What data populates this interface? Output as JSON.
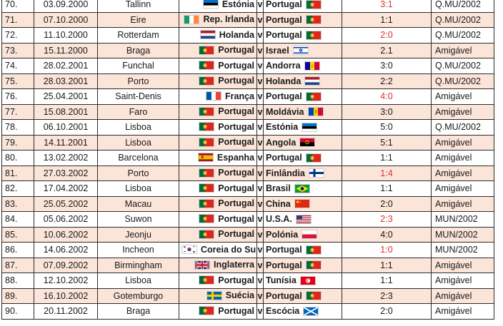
{
  "rows": [
    {
      "n": "70.",
      "date": "03.09.2000",
      "city": "Tallinn",
      "home": "Estónia",
      "home_flag": "estonia-flag",
      "away": "Portugal",
      "away_flag": "portugal-flag",
      "score": "3:1",
      "score_color": "#e0312c",
      "comp": "Q.MU/2002"
    },
    {
      "n": "71.",
      "date": "07.10.2000",
      "city": "Eire",
      "home": "Rep. Irlanda",
      "home_flag": "ireland-flag",
      "away": "Portugal",
      "away_flag": "portugal-flag",
      "score": "1:1",
      "score_color": "#1a1a1a",
      "comp": "Q.MU/2002"
    },
    {
      "n": "72.",
      "date": "11.10.2000",
      "city": "Rotterdam",
      "home": "Holanda",
      "home_flag": "netherlands-flag",
      "away": "Portugal",
      "away_flag": "portugal-flag",
      "score": "2:0",
      "score_color": "#e0312c",
      "comp": "Q.MU/2002"
    },
    {
      "n": "73.",
      "date": "15.11.2000",
      "city": "Braga",
      "home": "Portugal",
      "home_flag": "portugal-flag",
      "away": "Israel",
      "away_flag": "israel-flag",
      "score": "2.1",
      "score_color": "#1a1a1a",
      "comp": "Amigável"
    },
    {
      "n": "74.",
      "date": "28.02.2001",
      "city": "Funchal",
      "home": "Portugal",
      "home_flag": "portugal-flag",
      "away": "Andorra",
      "away_flag": "andorra-flag",
      "score": "3:0",
      "score_color": "#1a1a1a",
      "comp": "Q.MU/2002"
    },
    {
      "n": "75.",
      "date": "28.03.2001",
      "city": "Porto",
      "home": "Portugal",
      "home_flag": "portugal-flag",
      "away": "Holanda",
      "away_flag": "netherlands-flag",
      "score": "2:2",
      "score_color": "#1a1a1a",
      "comp": "Q.MU/2002"
    },
    {
      "n": "76.",
      "date": "25.04.2001",
      "city": "Saint-Denis",
      "home": "França",
      "home_flag": "france-flag",
      "away": "Portugal",
      "away_flag": "portugal-flag",
      "score": "4:0",
      "score_color": "#e0312c",
      "comp": "Amigável"
    },
    {
      "n": "77.",
      "date": "15.08.2001",
      "city": "Faro",
      "home": "Portugal",
      "home_flag": "portugal-flag",
      "away": "Moldávia",
      "away_flag": "moldova-flag",
      "score": "3:0",
      "score_color": "#1a1a1a",
      "comp": "Amigável"
    },
    {
      "n": "78.",
      "date": "06.10.2001",
      "city": "Lisboa",
      "home": "Portugal",
      "home_flag": "portugal-flag",
      "away": "Estónia",
      "away_flag": "estonia-flag",
      "score": "5:0",
      "score_color": "#1a1a1a",
      "comp": "Q.MU/2002"
    },
    {
      "n": "79.",
      "date": "14.11.2001",
      "city": "Lisboa",
      "home": "Portugal",
      "home_flag": "portugal-flag",
      "away": "Angola",
      "away_flag": "angola-flag",
      "score": "5:1",
      "score_color": "#1a1a1a",
      "comp": "Amigável"
    },
    {
      "n": "80.",
      "date": "13.02.2002",
      "city": "Barcelona",
      "home": "Espanha",
      "home_flag": "spain-flag",
      "away": "Portugal",
      "away_flag": "portugal-flag",
      "score": "1:1",
      "score_color": "#1a1a1a",
      "comp": "Amigável"
    },
    {
      "n": "81.",
      "date": "27.03.2002",
      "city": "Porto",
      "home": "Portugal",
      "home_flag": "portugal-flag",
      "away": "Finlândia",
      "away_flag": "finland-flag",
      "score": "1:4",
      "score_color": "#e0312c",
      "comp": "Amigável"
    },
    {
      "n": "82.",
      "date": "17.04.2002",
      "city": "Lisboa",
      "home": "Portugal",
      "home_flag": "portugal-flag",
      "away": "Brasil",
      "away_flag": "brazil-flag",
      "score": "1:1",
      "score_color": "#1a1a1a",
      "comp": "Amigável"
    },
    {
      "n": "83.",
      "date": "25.05.2002",
      "city": "Macau",
      "home": "Portugal",
      "home_flag": "portugal-flag",
      "away": "China",
      "away_flag": "china-flag",
      "score": "2:0",
      "score_color": "#1a1a1a",
      "comp": "Amigável"
    },
    {
      "n": "84.",
      "date": "05.06.2002",
      "city": "Suwon",
      "home": "Portugal",
      "home_flag": "portugal-flag",
      "away": "U.S.A.",
      "away_flag": "usa-flag",
      "score": "2:3",
      "score_color": "#e0312c",
      "comp": "MUN/2002"
    },
    {
      "n": "85.",
      "date": "10.06.2002",
      "city": "Jeonju",
      "home": "Portugal",
      "home_flag": "portugal-flag",
      "away": "Polónia",
      "away_flag": "poland-flag",
      "score": "4:0",
      "score_color": "#1a1a1a",
      "comp": "MUN/2002"
    },
    {
      "n": "86.",
      "date": "14.06.2002",
      "city": "Incheon",
      "home": "Coreia do Sul",
      "home_flag": "south-korea-flag",
      "away": "Portugal",
      "away_flag": "portugal-flag",
      "score": "1:0",
      "score_color": "#e0312c",
      "comp": "MUN/2002"
    },
    {
      "n": "87.",
      "date": "07.09.2002",
      "city": "Birmingham",
      "home": "Inglaterra",
      "home_flag": "uk-flag",
      "away": "Portugal",
      "away_flag": "portugal-flag",
      "score": "1:1",
      "score_color": "#1a1a1a",
      "comp": "Amigável"
    },
    {
      "n": "88.",
      "date": "12.10.2002",
      "city": "Lisboa",
      "home": "Portugal",
      "home_flag": "portugal-flag",
      "away": "Tunísia",
      "away_flag": "tunisia-flag",
      "score": "1:1",
      "score_color": "#1a1a1a",
      "comp": "Amigável"
    },
    {
      "n": "89.",
      "date": "16.10.2002",
      "city": "Gotemburgo",
      "home": "Suécia",
      "home_flag": "sweden-flag",
      "away": "Portugal",
      "away_flag": "portugal-flag",
      "score": "2:3",
      "score_color": "#1a1a1a",
      "comp": "Amigável"
    },
    {
      "n": "90.",
      "date": "20.11.2002",
      "city": "Braga",
      "home": "Portugal",
      "home_flag": "portugal-flag",
      "away": "Escócia",
      "away_flag": "scotland-flag",
      "score": "2:0",
      "score_color": "#1a1a1a",
      "comp": "Amigável"
    }
  ],
  "v_label": "v",
  "colors": {
    "row_tint": "#fbe4d8",
    "loss_score": "#e0312c"
  }
}
